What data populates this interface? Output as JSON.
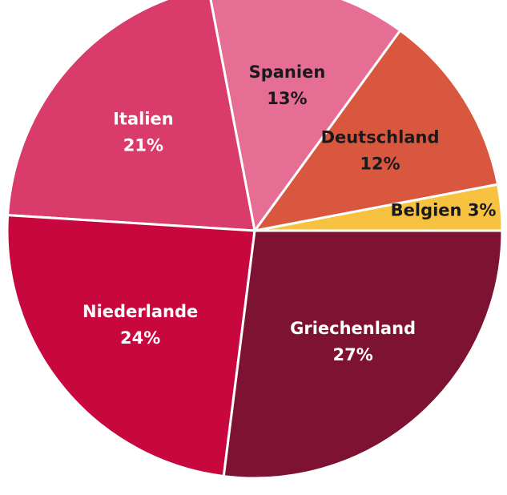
{
  "chart_data": {
    "type": "pie",
    "categories": [
      "Belgien",
      "Deutschland",
      "Spanien",
      "Italien",
      "Niederlande",
      "Griechenland"
    ],
    "values": [
      3,
      12,
      13,
      21,
      24,
      27
    ],
    "value_labels": [
      "3%",
      "12%",
      "13%",
      "21%",
      "24%",
      "27%"
    ],
    "colors": [
      "#f7c240",
      "#d9573f",
      "#e66e95",
      "#d93c6a",
      "#c8073f",
      "#7d1232"
    ]
  }
}
